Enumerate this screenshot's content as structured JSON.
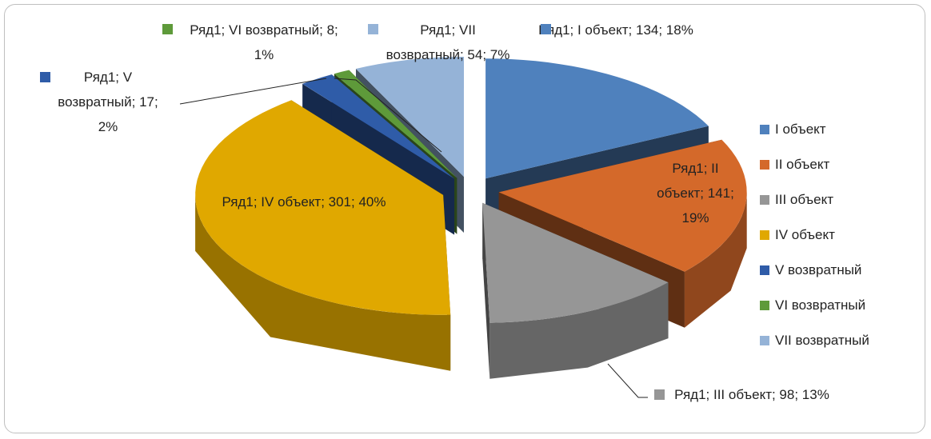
{
  "chart_data": {
    "type": "pie3d",
    "categories": [
      "I объект",
      "II объект",
      "III объект",
      "IV объект",
      "V возвратный",
      "VI возвратный",
      "VII возвратный"
    ],
    "values": [
      134,
      141,
      98,
      301,
      17,
      8,
      54
    ],
    "value_labels": [
      "Ряд1; I объект; 134; 18%",
      "Ряд1; II объект; 141; 19%",
      "Ряд1; III объект; 98; 13%",
      "Ряд1; IV объект; 301; 40%",
      "Ряд1; V возвратный; 17; 2%",
      "Ряд1; VI возвратный; 8; 1%",
      "Ряд1; VII возвратный; 54; 7%"
    ],
    "colors": [
      "#4f81bd",
      "#d4692a",
      "#969696",
      "#e0a800",
      "#2f5ca8",
      "#5e9a3a",
      "#95b3d7"
    ],
    "legend": "right"
  }
}
